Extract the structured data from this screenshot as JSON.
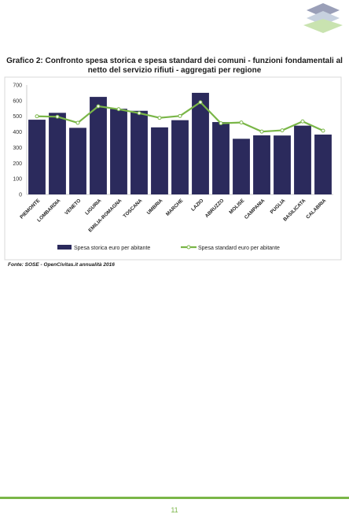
{
  "header": {
    "logo_icon": "stacked-squares-logo-icon"
  },
  "title_lines": [
    "Grafico 2: Confronto spesa storica e spesa standard dei comuni - funzioni fondamentali al",
    "netto del servizio rifiuti - aggregati per regione"
  ],
  "chart_data": {
    "type": "bar",
    "categories": [
      "PIEMONTE",
      "LOMBARDIA",
      "VENETO",
      "LIGURIA",
      "EMILIA-ROMAGNA",
      "TOSCANA",
      "UMBRIA",
      "MARCHE",
      "LAZIO",
      "ABRUZZO",
      "MOLISE",
      "CAMPANIA",
      "PUGLIA",
      "BASILICATA",
      "CALABRIA"
    ],
    "series": [
      {
        "name": "Spesa storica euro per abitante",
        "kind": "bar",
        "color": "#2b2a5c",
        "values": [
          478,
          522,
          426,
          624,
          548,
          535,
          429,
          475,
          650,
          463,
          356,
          378,
          377,
          440,
          383
        ]
      },
      {
        "name": "Spesa standard euro per abitante",
        "kind": "line",
        "color": "#7ab648",
        "values": [
          500,
          497,
          458,
          564,
          545,
          520,
          490,
          502,
          590,
          455,
          460,
          402,
          410,
          467,
          408
        ]
      }
    ],
    "yticks": [
      "0",
      "100",
      "200",
      "300",
      "400",
      "500",
      "600",
      "700"
    ],
    "ylim": [
      0,
      700
    ],
    "grid": false,
    "legend_position": "bottom"
  },
  "source_note": "Fonte: SOSE - OpenCivitas.it annualità 2016",
  "footer": {
    "page_number": "11",
    "rule_color": "#7ab648"
  }
}
